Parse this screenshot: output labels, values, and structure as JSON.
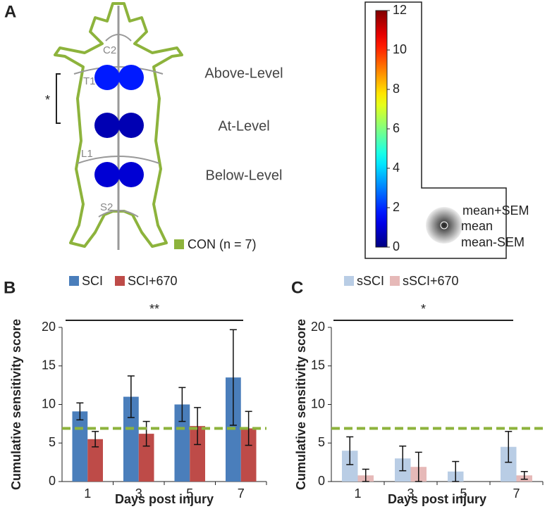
{
  "panel_a": {
    "label": "A",
    "levels": [
      "C2",
      "T1",
      "L1",
      "S2"
    ],
    "regions": [
      {
        "name": "Above-Level",
        "mean": 1.8
      },
      {
        "name": "At-Level",
        "mean": 0.6
      },
      {
        "name": "Below-Level",
        "mean": 1.0
      }
    ],
    "significance": "*",
    "group": "CON (n = 7)",
    "group_color": "#8db33c",
    "colorbar": {
      "lim": [
        0,
        12
      ],
      "ticks": [
        0,
        2,
        4,
        6,
        8,
        10,
        12
      ]
    },
    "legend": [
      "mean+SEM",
      "mean",
      "mean-SEM"
    ]
  },
  "chart_data": [
    {
      "type": "bar",
      "panel_label": "B",
      "xlabel": "Days post injury",
      "ylabel": "Cumulative sensitivity score",
      "categories": [
        "1",
        "3",
        "5",
        "7"
      ],
      "series": [
        {
          "name": "SCI",
          "color": "#4a7ebb",
          "values": [
            9.1,
            11.0,
            10.0,
            13.5
          ],
          "errors": [
            1.1,
            2.7,
            2.2,
            6.2
          ]
        },
        {
          "name": "SCI+670",
          "color": "#be4b48",
          "values": [
            5.5,
            6.2,
            7.2,
            6.9
          ],
          "errors": [
            1.0,
            1.6,
            2.4,
            2.2
          ]
        }
      ],
      "reference_line": {
        "value": 6.9,
        "color": "#8db33c"
      },
      "significance": "**",
      "ylim": [
        0,
        20
      ],
      "yticks": [
        0,
        5,
        10,
        15,
        20
      ]
    },
    {
      "type": "bar",
      "panel_label": "C",
      "xlabel": "Days post injury",
      "ylabel": "Cumulative sensitivity score",
      "categories": [
        "1",
        "3",
        "5",
        "7"
      ],
      "series": [
        {
          "name": "sSCI",
          "color": "#b9cde5",
          "values": [
            4.0,
            3.0,
            1.3,
            4.5
          ],
          "errors": [
            1.8,
            1.6,
            1.3,
            2.0
          ]
        },
        {
          "name": "sSCI+670",
          "color": "#e6b9b8",
          "values": [
            0.8,
            1.9,
            null,
            0.8
          ],
          "errors": [
            0.8,
            1.9,
            null,
            0.5
          ]
        }
      ],
      "reference_line": {
        "value": 6.9,
        "color": "#8db33c"
      },
      "significance": "*",
      "ylim": [
        0,
        20
      ],
      "yticks": [
        0,
        5,
        10,
        15,
        20
      ]
    }
  ]
}
